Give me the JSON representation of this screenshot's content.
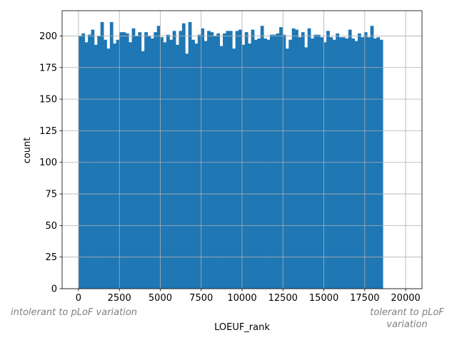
{
  "chart_data": {
    "type": "bar",
    "title": "",
    "xlabel": "LOEUF_rank",
    "ylabel": "count",
    "xlim": [
      -1000,
      21000
    ],
    "ylim": [
      0,
      220
    ],
    "xticks": [
      0,
      2500,
      5000,
      7500,
      10000,
      12500,
      15000,
      17500,
      20000
    ],
    "yticks": [
      0,
      25,
      50,
      75,
      100,
      125,
      150,
      175,
      200
    ],
    "grid": true,
    "bar_color": "#1f77b4",
    "grid_color": "#b0b0b0",
    "bin_start": 0,
    "bin_width": 191.8,
    "counts": [
      200,
      202,
      195,
      201,
      205,
      193,
      200,
      211,
      197,
      190,
      211,
      194,
      197,
      203,
      203,
      202,
      195,
      206,
      200,
      203,
      188,
      203,
      200,
      198,
      203,
      208,
      199,
      195,
      201,
      197,
      204,
      193,
      204,
      210,
      186,
      211,
      197,
      194,
      201,
      206,
      196,
      204,
      203,
      200,
      202,
      192,
      202,
      204,
      204,
      190,
      204,
      205,
      193,
      203,
      194,
      205,
      197,
      198,
      208,
      198,
      197,
      201,
      201,
      202,
      207,
      201,
      190,
      197,
      206,
      205,
      199,
      203,
      191,
      206,
      198,
      201,
      201,
      199,
      195,
      204,
      199,
      197,
      202,
      199,
      199,
      198,
      205,
      198,
      196,
      202,
      199,
      203,
      199,
      208,
      198,
      199,
      197
    ],
    "annotations": [
      {
        "text": "intolerant to pLoF variation",
        "side": "left"
      },
      {
        "text": "tolerant to pLoF variation",
        "side": "right"
      }
    ]
  }
}
